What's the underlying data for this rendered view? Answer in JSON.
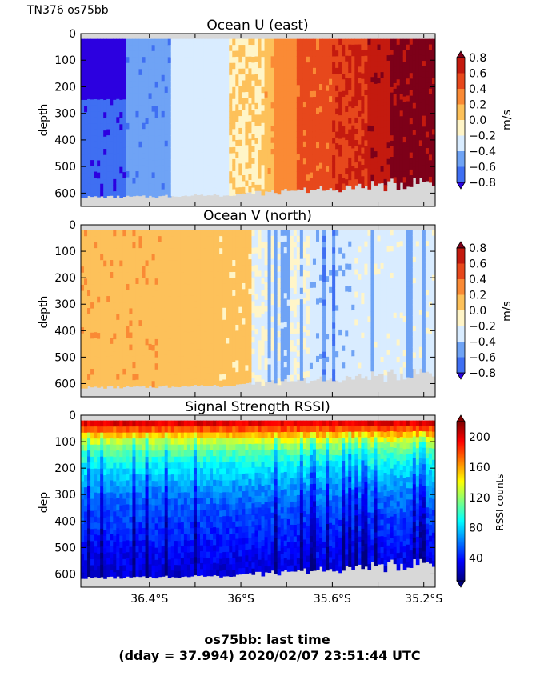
{
  "header": {
    "cruise_label": "TN376 os75bb"
  },
  "footer": {
    "line1": "os75bb: last time",
    "line2": "(dday = 37.994) 2020/02/07 23:51:44 UTC"
  },
  "colors": {
    "mask_gray": "#d8d8d8",
    "diverging": [
      "#2c00e0",
      "#3f6ff2",
      "#6fa3f5",
      "#d9ecff",
      "#fff5c8",
      "#fdc15a",
      "#fa8a35",
      "#e7481c",
      "#c41a0f",
      "#7d0019"
    ],
    "jet": [
      "#00007f",
      "#0000ff",
      "#007fff",
      "#00ffff",
      "#7fff7f",
      "#ffff00",
      "#ff7f00",
      "#ff0000",
      "#7f0000"
    ]
  },
  "chart_data": [
    {
      "type": "heatmap",
      "title": "Ocean U (east)",
      "ylabel": "depth",
      "y_ticks": [
        "0",
        "100",
        "200",
        "300",
        "400",
        "500",
        "600"
      ],
      "ylim": [
        650,
        0
      ],
      "xlim": [
        36.7,
        35.15
      ],
      "x_ticks": [
        36.4,
        36.2,
        36.0,
        35.8,
        35.6,
        35.4,
        35.2
      ],
      "x_tick_labels": [
        "",
        "",
        "",
        "",
        "",
        "",
        ""
      ],
      "colorbar": {
        "label": "m/s",
        "ticks": [
          "0.8",
          "0.6",
          "0.4",
          "0.2",
          "0.0",
          "−0.2",
          "−0.4",
          "−0.6",
          "−0.8"
        ],
        "range": [
          -0.8,
          0.8
        ]
      },
      "profile": {
        "lat_breaks": [
          36.7,
          36.5,
          36.3,
          36.05,
          35.9,
          35.85,
          35.75,
          35.6,
          35.45,
          35.35,
          35.15
        ],
        "values": [
          -0.75,
          -0.55,
          -0.3,
          0.0,
          0.15,
          0.3,
          0.45,
          0.6,
          0.75,
          0.85
        ]
      }
    },
    {
      "type": "heatmap",
      "title": "Ocean V (north)",
      "ylabel": "depth",
      "y_ticks": [
        "0",
        "100",
        "200",
        "300",
        "400",
        "500",
        "600"
      ],
      "ylim": [
        650,
        0
      ],
      "xlim": [
        36.7,
        35.15
      ],
      "x_ticks": [
        36.4,
        36.2,
        36.0,
        35.8,
        35.6,
        35.4,
        35.2
      ],
      "x_tick_labels": [
        "",
        "",
        "",
        "",
        "",
        "",
        ""
      ],
      "colorbar": {
        "label": "m/s",
        "ticks": [
          "0.8",
          "0.6",
          "0.4",
          "0.2",
          "0.0",
          "−0.2",
          "−0.4",
          "−0.6",
          "−0.8"
        ],
        "range": [
          -0.8,
          0.8
        ]
      },
      "profile": {
        "lat_breaks": [
          36.7,
          36.35,
          36.1,
          35.95,
          35.7,
          35.5,
          35.15
        ],
        "values": [
          0.15,
          0.1,
          0.05,
          -0.2,
          -0.35,
          -0.25
        ]
      }
    },
    {
      "type": "heatmap",
      "title": "Signal Strength RSSI)",
      "ylabel": "dep",
      "y_ticks": [
        "0",
        "100",
        "200",
        "300",
        "400",
        "500",
        "600"
      ],
      "ylim": [
        650,
        0
      ],
      "xlim": [
        36.7,
        35.15
      ],
      "x_ticks": [
        36.4,
        36.2,
        36.0,
        35.8,
        35.6,
        35.4,
        35.2
      ],
      "x_tick_labels": [
        "36.4°S",
        "",
        "36°S",
        "",
        "35.6°S",
        "",
        "35.2°S"
      ],
      "colorbar": {
        "label": "RSSI counts",
        "ticks": [
          "200",
          "160",
          "120",
          "80",
          "40"
        ],
        "range": [
          10,
          220
        ]
      },
      "depth_profile": {
        "depths": [
          20,
          60,
          100,
          150,
          200,
          280,
          380,
          480,
          580,
          650
        ],
        "values": [
          210,
          170,
          130,
          100,
          85,
          65,
          50,
          40,
          30,
          25
        ]
      }
    }
  ]
}
